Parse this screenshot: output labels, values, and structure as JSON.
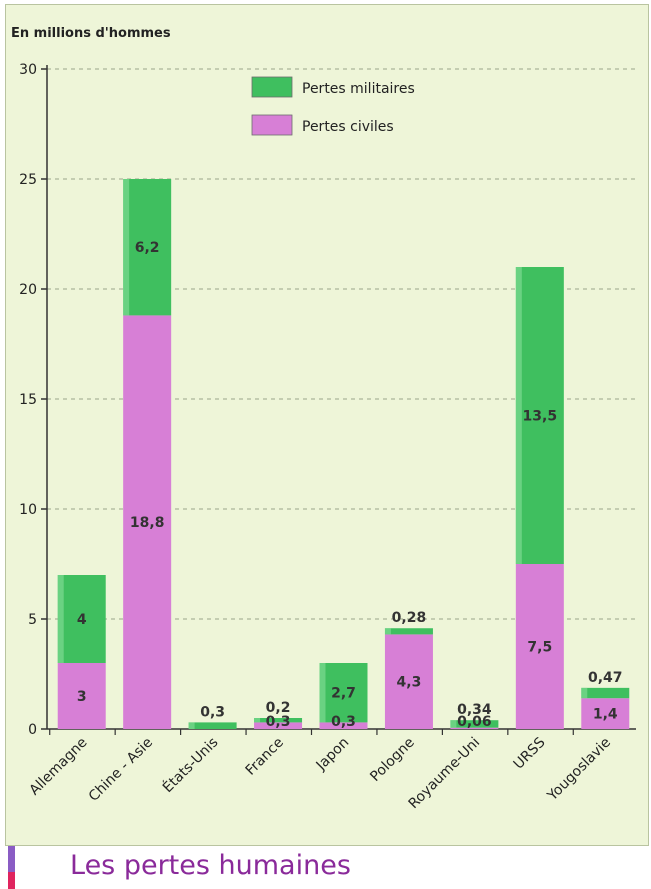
{
  "footer": {
    "title": "Les pertes humaines"
  },
  "chart_data": {
    "type": "bar",
    "stacked": true,
    "ylabel": "En millions d'hommes",
    "ylim": [
      0,
      30
    ],
    "yticks": [
      0,
      5,
      10,
      15,
      20,
      25,
      30
    ],
    "grid": true,
    "legend_position": "top-center",
    "categories": [
      "Allemagne",
      "Chine - Asie",
      "États-Unis",
      "France",
      "Japon",
      "Pologne",
      "Royaume-Uni",
      "URSS",
      "Yougoslavie"
    ],
    "series": [
      {
        "name": "Pertes civiles",
        "color": "#d77fd6",
        "values": [
          3,
          18.8,
          0,
          0.3,
          0.3,
          4.3,
          0.06,
          7.5,
          1.4
        ],
        "labels": [
          "3",
          "18,8",
          "",
          "0,3",
          "0,3",
          "4,3",
          "0,06",
          "7,5",
          "1,4"
        ]
      },
      {
        "name": "Pertes militaires",
        "color": "#3fbf5f",
        "values": [
          4,
          6.2,
          0.3,
          0.2,
          2.7,
          0.28,
          0.34,
          13.5,
          0.47
        ],
        "labels": [
          "4",
          "6,2",
          "0,3",
          "0,2",
          "2,7",
          "0,28",
          "0,34",
          "13,5",
          "0,47"
        ]
      }
    ]
  }
}
